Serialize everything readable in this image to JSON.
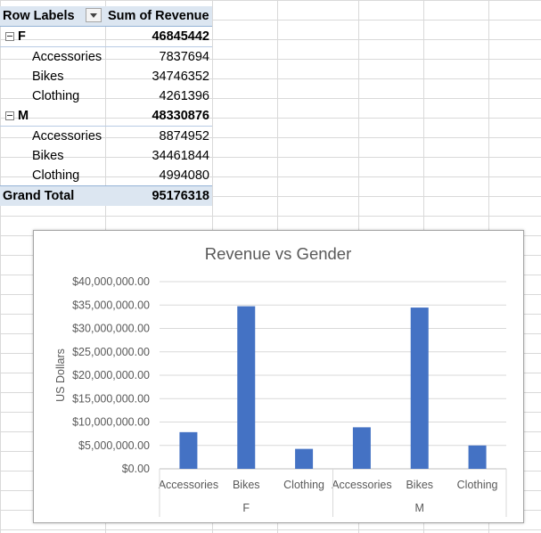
{
  "pivot": {
    "header": {
      "row_labels": "Row Labels",
      "sum_label": "Sum of Revenue"
    },
    "groups": [
      {
        "label": "F",
        "total": "46845442",
        "items": [
          {
            "label": "Accessories",
            "value": "7837694"
          },
          {
            "label": "Bikes",
            "value": "34746352"
          },
          {
            "label": "Clothing",
            "value": "4261396"
          }
        ]
      },
      {
        "label": "M",
        "total": "48330876",
        "items": [
          {
            "label": "Accessories",
            "value": "8874952"
          },
          {
            "label": "Bikes",
            "value": "34461844"
          },
          {
            "label": "Clothing",
            "value": "4994080"
          }
        ]
      }
    ],
    "grand_total": {
      "label": "Grand Total",
      "value": "95176318"
    }
  },
  "chart_data": {
    "type": "bar",
    "title": "Revenue vs Gender",
    "ylabel": "US Dollars",
    "xlabel": "",
    "groups": [
      "F",
      "M"
    ],
    "categories": [
      "Accessories",
      "Bikes",
      "Clothing",
      "Accessories",
      "Bikes",
      "Clothing"
    ],
    "values": [
      7837694,
      34746352,
      4261396,
      8874952,
      34461844,
      4994080
    ],
    "ylim": [
      0,
      40000000
    ],
    "yticks": [
      "$0.00",
      "$5,000,000.00",
      "$10,000,000.00",
      "$15,000,000.00",
      "$20,000,000.00",
      "$25,000,000.00",
      "$30,000,000.00",
      "$35,000,000.00",
      "$40,000,000.00"
    ],
    "grid": true,
    "bar_color": "#4472c4"
  }
}
